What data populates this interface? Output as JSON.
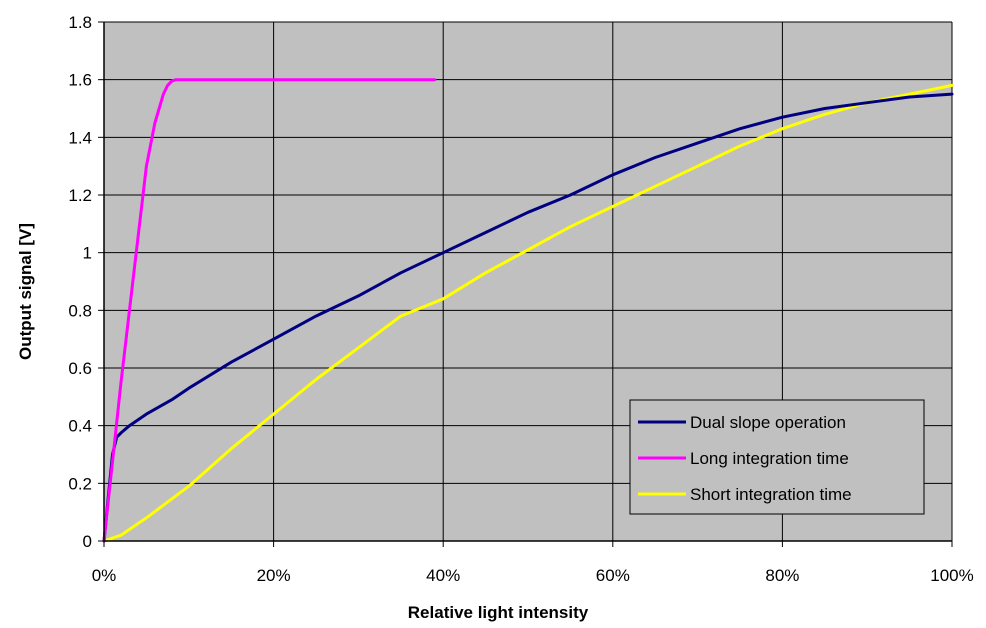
{
  "chart_data": {
    "type": "line",
    "title": "",
    "xlabel": "Relative light intensity",
    "ylabel": "Output signal [V]",
    "xlim": [
      0,
      100
    ],
    "ylim": [
      0,
      1.8
    ],
    "x_ticks": [
      0,
      20,
      40,
      60,
      80,
      100
    ],
    "x_tick_labels": [
      "0%",
      "20%",
      "40%",
      "60%",
      "80%",
      "100%"
    ],
    "y_ticks": [
      0,
      0.2,
      0.4,
      0.6,
      0.8,
      1,
      1.2,
      1.4,
      1.6,
      1.8
    ],
    "y_tick_labels": [
      "0",
      "0.2",
      "0.4",
      "0.6",
      "0.8",
      "1",
      "1.2",
      "1.4",
      "1.6",
      "1.8"
    ],
    "grid": true,
    "legend_position": "bottom-right",
    "colors": {
      "plot_background": "#c0c0c0",
      "grid": "#000000"
    },
    "series": [
      {
        "name": "Dual slope operation",
        "color": "#000080",
        "x": [
          0,
          0.5,
          1,
          1.5,
          2,
          3,
          5,
          8,
          10,
          15,
          20,
          25,
          30,
          35,
          40,
          45,
          50,
          55,
          60,
          65,
          70,
          75,
          80,
          85,
          90,
          95,
          100
        ],
        "y": [
          0,
          0.15,
          0.3,
          0.36,
          0.375,
          0.4,
          0.44,
          0.49,
          0.53,
          0.62,
          0.7,
          0.78,
          0.85,
          0.93,
          1.0,
          1.07,
          1.14,
          1.2,
          1.27,
          1.33,
          1.38,
          1.43,
          1.47,
          1.5,
          1.52,
          1.54,
          1.55
        ]
      },
      {
        "name": "Long integration time",
        "color": "#ff00ff",
        "x": [
          0,
          2,
          4,
          5,
          6,
          7,
          7.5,
          8,
          8.5,
          9,
          10,
          20,
          30,
          39
        ],
        "y": [
          0,
          0.55,
          1.05,
          1.3,
          1.45,
          1.55,
          1.58,
          1.595,
          1.6,
          1.6,
          1.6,
          1.6,
          1.6,
          1.6
        ]
      },
      {
        "name": "Short integration time",
        "color": "#ffff00",
        "x": [
          0,
          2,
          5,
          10,
          15,
          20,
          25,
          30,
          35,
          40,
          45,
          50,
          55,
          60,
          65,
          70,
          75,
          80,
          85,
          90,
          95,
          100
        ],
        "y": [
          0,
          0.02,
          0.08,
          0.19,
          0.32,
          0.44,
          0.56,
          0.67,
          0.78,
          0.84,
          0.93,
          1.01,
          1.09,
          1.16,
          1.23,
          1.3,
          1.37,
          1.43,
          1.48,
          1.52,
          1.55,
          1.58
        ]
      }
    ]
  }
}
